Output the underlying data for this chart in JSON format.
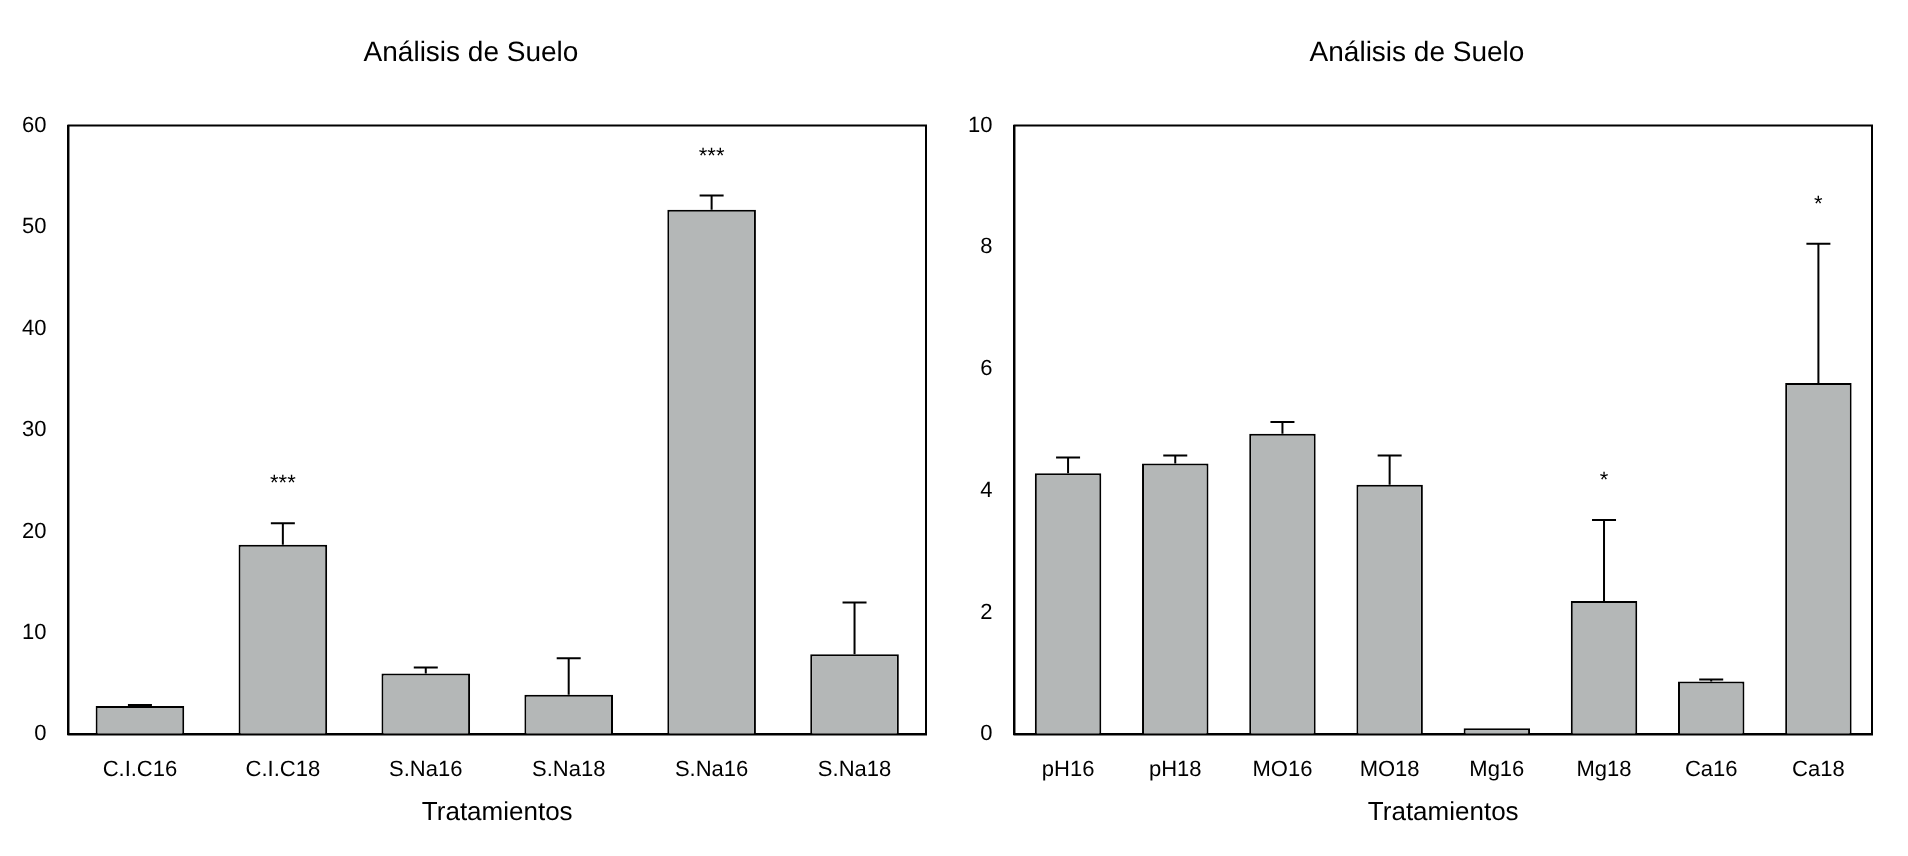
{
  "chart_data": [
    {
      "type": "bar",
      "title": "Análisis de Suelo",
      "xlabel": "Tratamientos",
      "categories": [
        "C.I.C16",
        "C.I.C18",
        "S.Na16",
        "S.Na18",
        "S.Na16",
        "S.Na18"
      ],
      "values": [
        2.8,
        18.7,
        6.0,
        3.9,
        51.7,
        7.9
      ],
      "errors": [
        [
          2.8,
          2.9
        ],
        [
          18.7,
          20.8
        ],
        [
          6.0,
          6.6
        ],
        [
          3.9,
          7.5
        ],
        [
          51.7,
          53.1
        ],
        [
          7.9,
          13.0
        ]
      ],
      "color": "#b4b7b7",
      "ylim": [
        0,
        60
      ],
      "yticks": [
        0,
        10,
        20,
        30,
        40,
        50,
        60
      ],
      "grid": false,
      "legend": false,
      "annotations": [
        {
          "text": "***",
          "x": "C.I.C18",
          "y": 20.8
        },
        {
          "text": "***",
          "y": 53.1
        }
      ]
    },
    {
      "type": "bar",
      "title": "Análisis de Suelo",
      "xlabel": "Tratamientos",
      "categories": [
        "pH16",
        "pH18",
        "MO16",
        "MO18",
        "Mg16",
        "Mg18",
        "Ca16",
        "Ca18"
      ],
      "values": [
        4.29,
        4.45,
        4.94,
        4.1,
        0.1,
        2.19,
        0.87,
        5.77
      ],
      "errors": [
        [
          4.29,
          4.55
        ],
        [
          4.45,
          4.58
        ],
        [
          4.94,
          5.13
        ],
        [
          4.1,
          4.58
        ],
        null,
        [
          2.19,
          3.52
        ],
        [
          0.87,
          0.9
        ],
        [
          5.77,
          8.06
        ]
      ],
      "color": "#b4b7b7",
      "ylim": [
        0,
        10
      ],
      "yticks": [
        0,
        2,
        4,
        6,
        8,
        10
      ],
      "grid": false,
      "legend": false,
      "annotations": [
        {
          "text": "*",
          "x": "Mg18",
          "y": 3.52
        },
        {
          "text": "*",
          "x": "Ca18",
          "y": 8.06
        }
      ]
    }
  ]
}
